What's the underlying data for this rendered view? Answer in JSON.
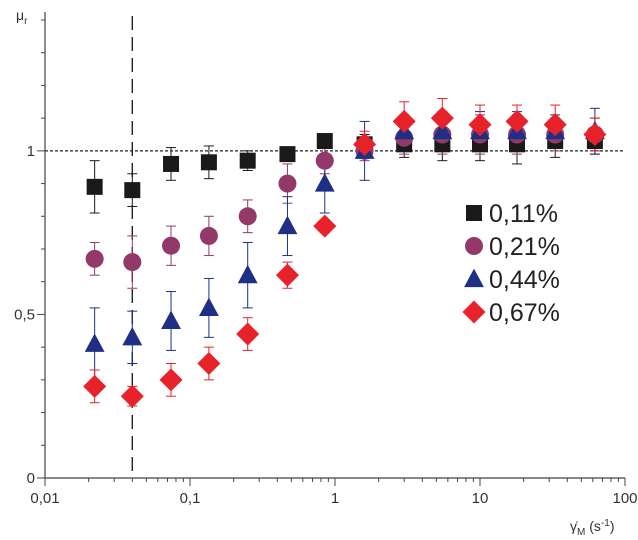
{
  "chart_data": {
    "type": "scatter",
    "xscale": "log",
    "xlim": [
      0.01,
      100
    ],
    "ylim": [
      0,
      1.4
    ],
    "ylabel": "μr",
    "xlabel": "γ̇M (s-1)",
    "x_ticks": [
      {
        "value": 0.01,
        "label": "0,01"
      },
      {
        "value": 0.1,
        "label": "0,1"
      },
      {
        "value": 1,
        "label": "1"
      },
      {
        "value": 10,
        "label": "10"
      },
      {
        "value": 100,
        "label": "100"
      }
    ],
    "y_ticks": [
      {
        "value": 0,
        "label": "0"
      },
      {
        "value": 0.5,
        "label": "0,5"
      },
      {
        "value": 1,
        "label": "1"
      }
    ],
    "reference_line": {
      "y": 1,
      "style": "dotted"
    },
    "vertical_line": {
      "x": 0.04,
      "style": "dashed"
    },
    "legend_position": "right",
    "series": [
      {
        "name": "0,11%",
        "marker": "square",
        "color": "#1a1a1a",
        "x": [
          0.022,
          0.04,
          0.074,
          0.135,
          0.25,
          0.47,
          0.85,
          1.6,
          3.0,
          5.5,
          10,
          18,
          33,
          62
        ],
        "y": [
          0.89,
          0.88,
          0.96,
          0.965,
          0.97,
          0.99,
          1.03,
          1.02,
          1.02,
          1.02,
          1.02,
          1.02,
          1.03,
          1.03
        ],
        "err": [
          0.08,
          0.05,
          0.05,
          0.05,
          0.03,
          0.02,
          0.02,
          0.03,
          0.04,
          0.05,
          0.05,
          0.06,
          0.05,
          0.04
        ]
      },
      {
        "name": "0,21%",
        "marker": "circle",
        "color": "#93396a",
        "x": [
          0.022,
          0.04,
          0.074,
          0.135,
          0.25,
          0.47,
          0.85,
          1.6,
          3.0,
          5.5,
          10,
          18,
          33,
          62
        ],
        "y": [
          0.67,
          0.66,
          0.71,
          0.74,
          0.8,
          0.9,
          0.97,
          1.0,
          1.04,
          1.05,
          1.05,
          1.05,
          1.05,
          1.05
        ],
        "err": [
          0.05,
          0.08,
          0.06,
          0.06,
          0.05,
          0.06,
          0.04,
          0.03,
          0.05,
          0.06,
          0.06,
          0.06,
          0.05,
          0.05
        ]
      },
      {
        "name": "0,44%",
        "marker": "triangle",
        "color": "#1f2f85",
        "x": [
          0.022,
          0.04,
          0.074,
          0.135,
          0.25,
          0.47,
          0.85,
          1.6,
          3.0,
          5.5,
          10,
          18,
          33,
          62
        ],
        "y": [
          0.41,
          0.43,
          0.48,
          0.52,
          0.62,
          0.77,
          0.9,
          1.0,
          1.06,
          1.06,
          1.06,
          1.06,
          1.06,
          1.06
        ],
        "err": [
          0.11,
          0.08,
          0.09,
          0.09,
          0.1,
          0.09,
          0.09,
          0.09,
          0.05,
          0.06,
          0.06,
          0.06,
          0.05,
          0.07
        ]
      },
      {
        "name": "0,67%",
        "marker": "diamond",
        "color": "#e8222a",
        "x": [
          0.022,
          0.04,
          0.074,
          0.135,
          0.25,
          0.47,
          0.85,
          1.6,
          3.0,
          5.5,
          10,
          18,
          33,
          62
        ],
        "y": [
          0.28,
          0.25,
          0.3,
          0.35,
          0.44,
          0.62,
          0.77,
          1.02,
          1.09,
          1.1,
          1.08,
          1.09,
          1.08,
          1.05
        ],
        "err": [
          0.05,
          0.03,
          0.05,
          0.05,
          0.05,
          0.04,
          0.02,
          0.04,
          0.06,
          0.06,
          0.06,
          0.05,
          0.06,
          0.05
        ]
      }
    ]
  }
}
